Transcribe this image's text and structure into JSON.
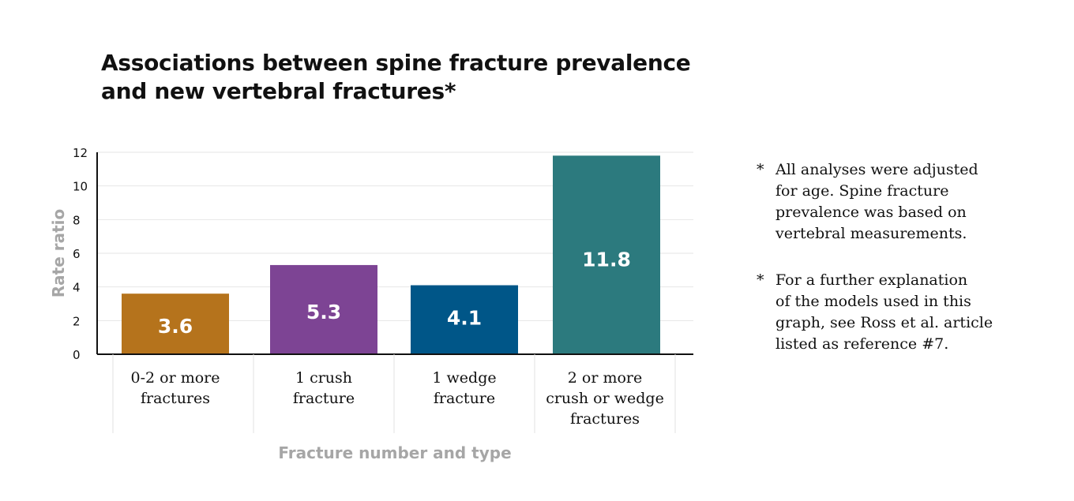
{
  "title": {
    "line1": "Associations between spine fracture prevalence",
    "line2": "and new vertebral fractures*"
  },
  "chart_data": {
    "type": "bar",
    "title": "Associations between spine fracture prevalence and new vertebral fractures*",
    "xlabel": "Fracture number and type",
    "ylabel": "Rate ratio",
    "ylim": [
      0,
      12
    ],
    "yticks": [
      0,
      2,
      4,
      6,
      8,
      10,
      12
    ],
    "grid": true,
    "categories": [
      [
        "0-2 or more",
        "fractures"
      ],
      [
        "1 crush",
        "fracture"
      ],
      [
        "1 wedge",
        "fracture"
      ],
      [
        "2 or more",
        "crush or wedge",
        "fractures"
      ]
    ],
    "values": [
      3.6,
      5.3,
      4.1,
      11.8
    ],
    "data_labels": [
      "3.6",
      "5.3",
      "4.1",
      "11.8"
    ],
    "colors": [
      "#b5731c",
      "#7d4494",
      "#005688",
      "#2c7a7e"
    ]
  },
  "notes": [
    {
      "marker": "*",
      "text": "All analyses were adjusted\nfor age. Spine fracture\nprevalence was based on\nvertebral measurements."
    },
    {
      "marker": "*",
      "text": "For a further explanation\nof the models used in this\ngraph, see Ross et al. article\nlisted as reference #7."
    }
  ],
  "colors": {
    "axis_label": "#a6a6a6",
    "text": "#111111",
    "grid": "#e6e6e6",
    "axis": "#111111"
  }
}
